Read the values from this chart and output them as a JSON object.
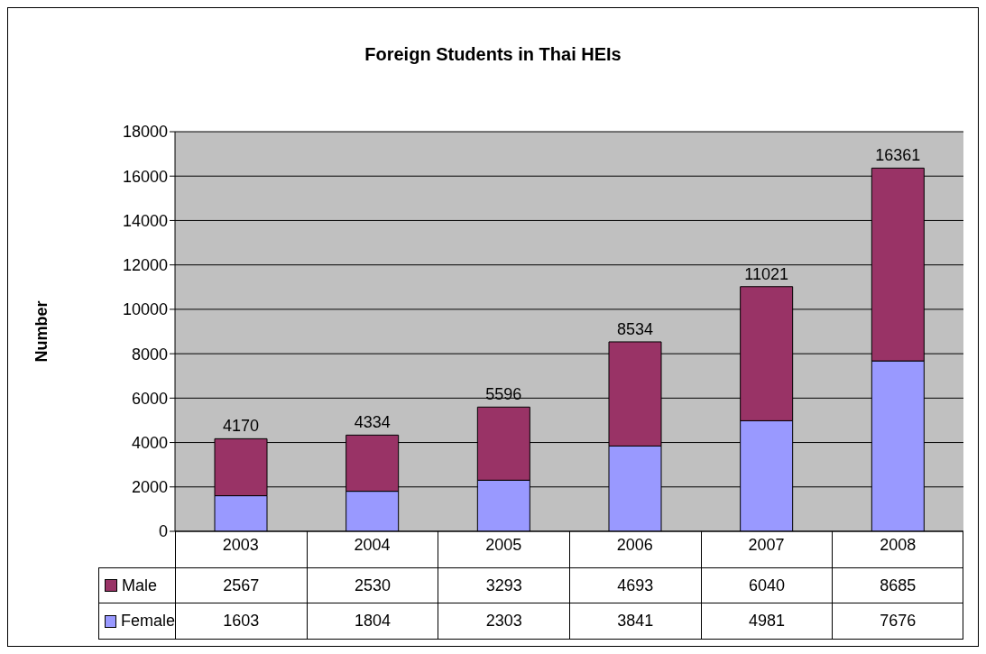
{
  "chart_data": {
    "type": "bar",
    "title": "Foreign Students in Thai HEIs",
    "ylabel": "Number",
    "categories": [
      "2003",
      "2004",
      "2005",
      "2006",
      "2007",
      "2008"
    ],
    "series": [
      {
        "name": "Female",
        "color": "#9999ff",
        "values": [
          1603,
          1804,
          2303,
          3841,
          4981,
          7676
        ]
      },
      {
        "name": "Male",
        "color": "#993366",
        "values": [
          2567,
          2530,
          3293,
          4693,
          6040,
          8685
        ]
      }
    ],
    "stacked": true,
    "data_labels": true,
    "totals": [
      "4170",
      "4334",
      "5596",
      "8534",
      "11021",
      "16361"
    ],
    "ylim": [
      0,
      18000
    ],
    "yticks": [
      0,
      2000,
      4000,
      6000,
      8000,
      10000,
      12000,
      14000,
      16000,
      18000
    ],
    "grid": "y",
    "legend": "bottom"
  }
}
